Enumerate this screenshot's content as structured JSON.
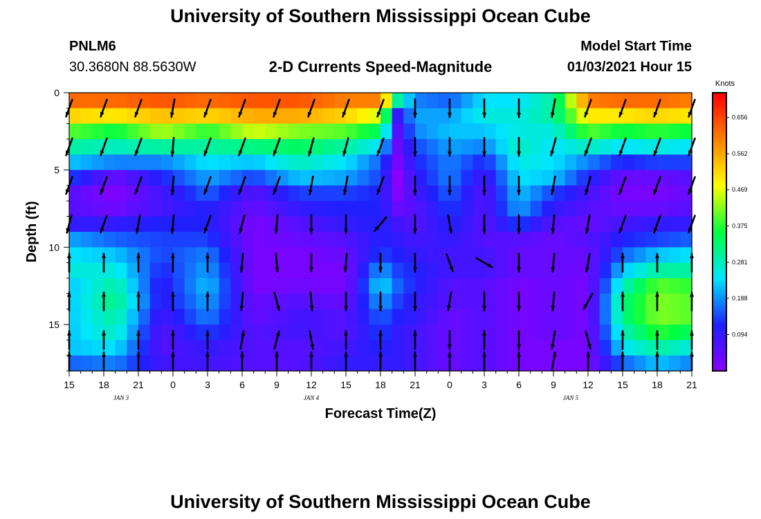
{
  "header": {
    "title": "University of Southern Mississippi Ocean Cube",
    "station_id": "PNLM6",
    "station_coords": "30.3680N 88.5630W",
    "chart_title": "2-D Currents Speed-Magnitude",
    "model_start_label": "Model Start Time",
    "model_start_value": "01/03/2021 Hour 15"
  },
  "footer": {
    "title": "University of Southern Mississippi Ocean Cube"
  },
  "colors": {
    "colormap": [
      "#8a00ff",
      "#2020ff",
      "#00e5ff",
      "#00ff40",
      "#ffff00",
      "#ff8000",
      "#ff0000"
    ],
    "arrow": "#000000",
    "frame": "#000000"
  },
  "chart_data": {
    "type": "heatmap",
    "title": "2-D Currents Speed-Magnitude",
    "xlabel": "Forecast Time(Z)",
    "ylabel": "Depth (ft)",
    "x_range_hours": [
      0,
      54
    ],
    "y_range_ft": [
      0,
      18
    ],
    "x_ticks": [
      {
        "h": 0,
        "label": "15"
      },
      {
        "h": 3,
        "label": "18"
      },
      {
        "h": 6,
        "label": "21"
      },
      {
        "h": 9,
        "label": "0"
      },
      {
        "h": 12,
        "label": "3"
      },
      {
        "h": 15,
        "label": "6"
      },
      {
        "h": 18,
        "label": "9"
      },
      {
        "h": 21,
        "label": "12"
      },
      {
        "h": 24,
        "label": "15"
      },
      {
        "h": 27,
        "label": "18"
      },
      {
        "h": 30,
        "label": "21"
      },
      {
        "h": 33,
        "label": "0"
      },
      {
        "h": 36,
        "label": "3"
      },
      {
        "h": 39,
        "label": "6"
      },
      {
        "h": 42,
        "label": "9"
      },
      {
        "h": 45,
        "label": "12"
      },
      {
        "h": 48,
        "label": "15"
      },
      {
        "h": 51,
        "label": "18"
      },
      {
        "h": 54,
        "label": "21"
      }
    ],
    "date_labels": [
      {
        "h": 4.5,
        "label": "JAN 3"
      },
      {
        "h": 21,
        "label": "JAN 4"
      },
      {
        "h": 43.5,
        "label": "JAN 5"
      }
    ],
    "y_ticks": [
      {
        "ft": 0,
        "label": "0"
      },
      {
        "ft": 5,
        "label": "5"
      },
      {
        "ft": 10,
        "label": "10"
      },
      {
        "ft": 15,
        "label": "15"
      }
    ],
    "colorbar": {
      "unit": "Knots",
      "min": 0.0,
      "max": 0.72,
      "tick_values": [
        0.094,
        0.188,
        0.281,
        0.375,
        0.469,
        0.562,
        0.656
      ],
      "tick_labels": [
        "0.094",
        "0.188",
        "0.281",
        "0.375",
        "0.469",
        "0.562",
        "0.656"
      ]
    },
    "depth_levels_ft": [
      0.5,
      1.5,
      2.5,
      3.5,
      4.5,
      5.5,
      6.5,
      7.5,
      8.5,
      9.5,
      10.5,
      11.5,
      12.5,
      13.5,
      14.5,
      15.5,
      16.5,
      17.5
    ],
    "speed_keyframes": [
      {
        "h": 0,
        "speeds": [
          0.62,
          0.52,
          0.4,
          0.3,
          0.22,
          0.14,
          0.06,
          0.06,
          0.1,
          0.2,
          0.24,
          0.26,
          0.22,
          0.22,
          0.22,
          0.22,
          0.22,
          0.16
        ]
      },
      {
        "h": 4,
        "speeds": [
          0.62,
          0.5,
          0.36,
          0.28,
          0.18,
          0.04,
          0.01,
          0.03,
          0.1,
          0.16,
          0.22,
          0.26,
          0.3,
          0.32,
          0.3,
          0.28,
          0.24,
          0.18
        ]
      },
      {
        "h": 8,
        "speeds": [
          0.64,
          0.54,
          0.44,
          0.3,
          0.18,
          0.12,
          0.08,
          0.08,
          0.12,
          0.14,
          0.14,
          0.12,
          0.1,
          0.1,
          0.08,
          0.06,
          0.06,
          0.08
        ]
      },
      {
        "h": 12,
        "speeds": [
          0.62,
          0.52,
          0.38,
          0.3,
          0.24,
          0.2,
          0.16,
          0.12,
          0.12,
          0.14,
          0.18,
          0.2,
          0.22,
          0.2,
          0.18,
          0.14,
          0.1,
          0.08
        ]
      },
      {
        "h": 16,
        "speeds": [
          0.64,
          0.56,
          0.46,
          0.32,
          0.22,
          0.14,
          0.06,
          0.04,
          0.02,
          0.02,
          0.02,
          0.02,
          0.02,
          0.04,
          0.04,
          0.06,
          0.06,
          0.06
        ]
      },
      {
        "h": 20,
        "speeds": [
          0.64,
          0.56,
          0.42,
          0.34,
          0.28,
          0.22,
          0.14,
          0.1,
          0.06,
          0.04,
          0.02,
          0.02,
          0.03,
          0.06,
          0.08,
          0.08,
          0.06,
          0.06
        ]
      },
      {
        "h": 24,
        "speeds": [
          0.6,
          0.52,
          0.4,
          0.3,
          0.24,
          0.2,
          0.14,
          0.12,
          0.1,
          0.06,
          0.04,
          0.02,
          0.02,
          0.04,
          0.06,
          0.06,
          0.08,
          0.1
        ]
      },
      {
        "h": 27,
        "speeds": [
          0.6,
          0.46,
          0.34,
          0.24,
          0.16,
          0.14,
          0.12,
          0.12,
          0.12,
          0.12,
          0.14,
          0.2,
          0.24,
          0.2,
          0.16,
          0.14,
          0.12,
          0.1
        ]
      },
      {
        "h": 28.5,
        "speeds": [
          0.3,
          0.1,
          0.06,
          0.04,
          0.02,
          0.0,
          0.01,
          0.04,
          0.08,
          0.1,
          0.12,
          0.14,
          0.16,
          0.14,
          0.12,
          0.1,
          0.1,
          0.1
        ]
      },
      {
        "h": 30,
        "speeds": [
          0.18,
          0.2,
          0.18,
          0.14,
          0.12,
          0.1,
          0.08,
          0.06,
          0.06,
          0.08,
          0.1,
          0.12,
          0.12,
          0.1,
          0.1,
          0.08,
          0.08,
          0.08
        ]
      },
      {
        "h": 33,
        "speeds": [
          0.16,
          0.2,
          0.22,
          0.2,
          0.18,
          0.18,
          0.16,
          0.14,
          0.12,
          0.1,
          0.08,
          0.08,
          0.06,
          0.06,
          0.04,
          0.04,
          0.04,
          0.04
        ]
      },
      {
        "h": 36,
        "speeds": [
          0.24,
          0.26,
          0.22,
          0.18,
          0.12,
          0.08,
          0.06,
          0.06,
          0.06,
          0.06,
          0.08,
          0.08,
          0.06,
          0.06,
          0.06,
          0.06,
          0.06,
          0.06
        ]
      },
      {
        "h": 39,
        "speeds": [
          0.24,
          0.26,
          0.26,
          0.28,
          0.26,
          0.24,
          0.22,
          0.2,
          0.14,
          0.06,
          0.04,
          0.04,
          0.02,
          0.02,
          0.02,
          0.02,
          0.02,
          0.02
        ]
      },
      {
        "h": 42,
        "speeds": [
          0.3,
          0.3,
          0.26,
          0.24,
          0.24,
          0.22,
          0.14,
          0.1,
          0.06,
          0.04,
          0.04,
          0.04,
          0.04,
          0.04,
          0.04,
          0.04,
          0.02,
          0.02
        ]
      },
      {
        "h": 45,
        "speeds": [
          0.6,
          0.5,
          0.4,
          0.28,
          0.18,
          0.12,
          0.08,
          0.06,
          0.04,
          0.06,
          0.04,
          0.03,
          0.02,
          0.02,
          0.02,
          0.02,
          0.02,
          0.02
        ]
      },
      {
        "h": 48,
        "speeds": [
          0.62,
          0.5,
          0.36,
          0.24,
          0.12,
          0.04,
          0.02,
          0.04,
          0.08,
          0.12,
          0.16,
          0.22,
          0.28,
          0.32,
          0.32,
          0.28,
          0.24,
          0.16
        ]
      },
      {
        "h": 51,
        "speeds": [
          0.62,
          0.52,
          0.38,
          0.26,
          0.14,
          0.04,
          0.02,
          0.04,
          0.1,
          0.14,
          0.22,
          0.3,
          0.4,
          0.42,
          0.42,
          0.38,
          0.3,
          0.22
        ]
      },
      {
        "h": 54,
        "speeds": [
          0.6,
          0.5,
          0.36,
          0.24,
          0.14,
          0.06,
          0.04,
          0.06,
          0.1,
          0.16,
          0.24,
          0.3,
          0.38,
          0.4,
          0.4,
          0.34,
          0.26,
          0.18
        ]
      }
    ],
    "arrow_rows_ft": [
      1,
      3.5,
      6,
      8.5,
      11,
      13.5,
      16,
      18
    ],
    "arrow_columns": [
      {
        "h": 0,
        "dirs": [
          200,
          200,
          200,
          195,
          0,
          0,
          0,
          0
        ]
      },
      {
        "h": 3,
        "dirs": [
          200,
          200,
          200,
          200,
          0,
          0,
          0,
          0
        ]
      },
      {
        "h": 6,
        "dirs": [
          200,
          200,
          200,
          190,
          0,
          0,
          0,
          0
        ]
      },
      {
        "h": 9,
        "dirs": [
          190,
          185,
          185,
          185,
          0,
          0,
          0,
          0
        ]
      },
      {
        "h": 12,
        "dirs": [
          200,
          200,
          200,
          200,
          0,
          0,
          0,
          0
        ]
      },
      {
        "h": 15,
        "dirs": [
          200,
          200,
          200,
          195,
          185,
          185,
          10,
          0
        ]
      },
      {
        "h": 18,
        "dirs": [
          200,
          200,
          200,
          185,
          175,
          165,
          15,
          0
        ]
      },
      {
        "h": 21,
        "dirs": [
          200,
          195,
          190,
          180,
          180,
          175,
          170,
          0
        ]
      },
      {
        "h": 24,
        "dirs": [
          200,
          195,
          190,
          180,
          185,
          180,
          0,
          0
        ]
      },
      {
        "h": 27,
        "dirs": [
          200,
          200,
          200,
          220,
          180,
          180,
          0,
          0
        ]
      },
      {
        "h": 30,
        "dirs": [
          180,
          180,
          180,
          180,
          180,
          180,
          0,
          0
        ]
      },
      {
        "h": 33,
        "dirs": [
          180,
          180,
          180,
          170,
          160,
          190,
          180,
          0
        ]
      },
      {
        "h": 36,
        "dirs": [
          180,
          180,
          180,
          180,
          120,
          180,
          0,
          0
        ]
      },
      {
        "h": 39,
        "dirs": [
          180,
          180,
          180,
          180,
          180,
          180,
          180,
          0
        ]
      },
      {
        "h": 42,
        "dirs": [
          190,
          195,
          190,
          185,
          185,
          185,
          190,
          10
        ]
      },
      {
        "h": 45,
        "dirs": [
          200,
          200,
          195,
          190,
          190,
          210,
          165,
          0
        ]
      },
      {
        "h": 48,
        "dirs": [
          200,
          200,
          200,
          200,
          0,
          0,
          0,
          0
        ]
      },
      {
        "h": 51,
        "dirs": [
          200,
          200,
          200,
          200,
          0,
          0,
          0,
          0
        ]
      },
      {
        "h": 54,
        "dirs": [
          200,
          200,
          200,
          200,
          0,
          0,
          0,
          0
        ]
      }
    ]
  }
}
